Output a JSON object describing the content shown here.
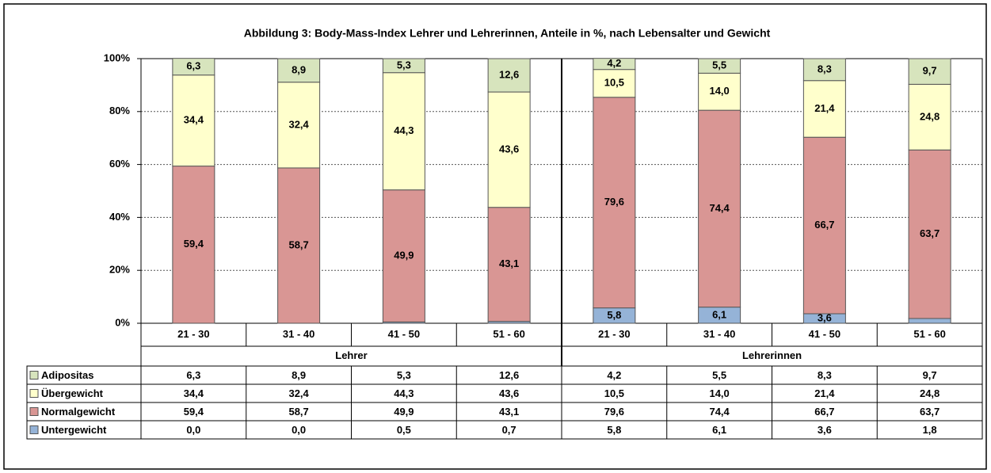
{
  "chart_data": {
    "type": "stacked_bar",
    "title": "Abbildung 3: Body-Mass-Index Lehrer und Lehrerinnen, Anteile in %, nach Lebensalter und Gewicht",
    "categories": [
      "21 - 30",
      "31 - 40",
      "41 - 50",
      "51 - 60",
      "21 - 30",
      "31 - 40",
      "41 - 50",
      "51 - 60"
    ],
    "groups": [
      "Lehrer",
      "Lehrerinnen"
    ],
    "ylim": [
      0,
      100
    ],
    "yticks": [
      {
        "value": 0,
        "label": "0%"
      },
      {
        "value": 20,
        "label": "20%"
      },
      {
        "value": 40,
        "label": "40%"
      },
      {
        "value": 60,
        "label": "60%"
      },
      {
        "value": 80,
        "label": "80%"
      },
      {
        "value": 100,
        "label": "100%"
      }
    ],
    "grid": true,
    "series": [
      {
        "name": "Untergewicht",
        "color": "#95b3d7",
        "values": [
          0.0,
          0.0,
          0.5,
          0.7,
          5.8,
          6.1,
          3.6,
          1.8
        ],
        "value_labels": [
          "0,0",
          "0,0",
          "0,5",
          "0,7",
          "5,8",
          "6,1",
          "3,6",
          "1,8"
        ]
      },
      {
        "name": "Normalgewicht",
        "color": "#d99694",
        "values": [
          59.4,
          58.7,
          49.9,
          43.1,
          79.6,
          74.4,
          66.7,
          63.7
        ],
        "value_labels": [
          "59,4",
          "58,7",
          "49,9",
          "43,1",
          "79,6",
          "74,4",
          "66,7",
          "63,7"
        ]
      },
      {
        "name": "Übergewicht",
        "color": "#ffffcc",
        "values": [
          34.4,
          32.4,
          44.3,
          43.6,
          10.5,
          14.0,
          21.4,
          24.8
        ],
        "value_labels": [
          "34,4",
          "32,4",
          "44,3",
          "43,6",
          "10,5",
          "14,0",
          "21,4",
          "24,8"
        ]
      },
      {
        "name": "Adipositas",
        "color": "#d7e4bd",
        "values": [
          6.3,
          8.9,
          5.3,
          12.6,
          4.2,
          5.5,
          8.3,
          9.7
        ],
        "value_labels": [
          "6,3",
          "8,9",
          "5,3",
          "12,6",
          "4,2",
          "5,5",
          "8,3",
          "9,7"
        ]
      }
    ]
  }
}
